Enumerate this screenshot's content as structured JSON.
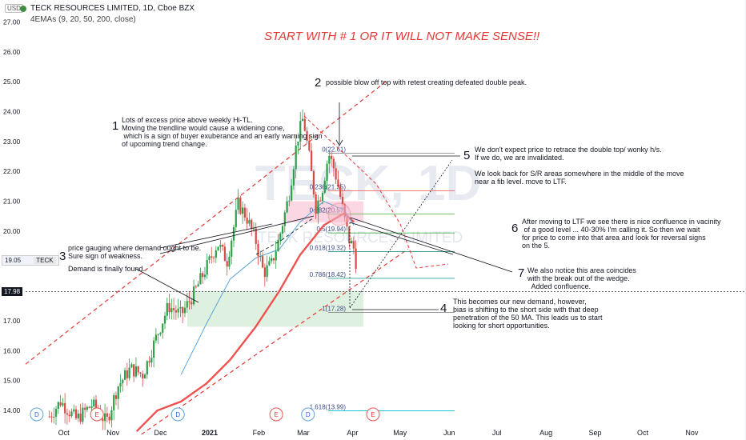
{
  "header": {
    "currency": "USD",
    "title": "TECK RESOURCES LIMITED, 1D, Cboe BZX",
    "indicator": "4EMAs (9, 20, 50, 200, close)",
    "symbol_tag": "TECK",
    "last_close": "19.05",
    "crosshair_price": "17.98"
  },
  "colors": {
    "up": "#26a69a",
    "down": "#ef5350",
    "candle_up": "#2e9e4a",
    "candle_down": "#d84a47",
    "ema50": "#ef5350",
    "ema20": "#5aa3d8",
    "dashed": "#e53935",
    "headline": "#e53935"
  },
  "watermark": {
    "big": "TECK, 1D",
    "small": "TECK RESOURCES LIMITED"
  },
  "chart_data": {
    "type": "candlestick",
    "title": "TECK RESOURCES LIMITED, 1D, Cboe BZX",
    "ylim": [
      13.6,
      27.2
    ],
    "y_ticks": [
      "27.00",
      "26.00",
      "25.00",
      "24.00",
      "23.00",
      "22.00",
      "21.00",
      "20.00",
      "19.00",
      "18.00",
      "17.00",
      "16.00",
      "15.00",
      "14.00"
    ],
    "x_ticks": [
      "Oct",
      "Nov",
      "Dec",
      "2021",
      "Feb",
      "Mar",
      "Apr",
      "May",
      "Jun",
      "Jul",
      "Aug",
      "Sep",
      "Oct",
      "Nov"
    ],
    "x_start": "2020-09-13",
    "x_end": "2021-11-25",
    "price_path": [
      [
        "2020-09-28",
        13.8
      ],
      [
        "2020-10-05",
        14.3
      ],
      [
        "2020-10-15",
        13.7
      ],
      [
        "2020-10-25",
        14.2
      ],
      [
        "2020-11-03",
        13.6
      ],
      [
        "2020-11-10",
        14.8
      ],
      [
        "2020-11-18",
        15.4
      ],
      [
        "2020-11-26",
        15.2
      ],
      [
        "2020-12-04",
        16.4
      ],
      [
        "2020-12-12",
        17.5
      ],
      [
        "2020-12-20",
        17.2
      ],
      [
        "2020-12-28",
        17.9
      ],
      [
        "2021-01-06",
        18.9
      ],
      [
        "2021-01-12",
        19.6
      ],
      [
        "2021-01-18",
        19.0
      ],
      [
        "2021-01-25",
        20.9
      ],
      [
        "2021-01-30",
        20.5
      ],
      [
        "2021-02-05",
        19.7
      ],
      [
        "2021-02-10",
        18.6
      ],
      [
        "2021-02-15",
        18.9
      ],
      [
        "2021-02-20",
        19.8
      ],
      [
        "2021-02-26",
        21.2
      ],
      [
        "2021-03-03",
        23.0
      ],
      [
        "2021-03-07",
        23.8
      ],
      [
        "2021-03-11",
        22.4
      ],
      [
        "2021-03-15",
        20.8
      ],
      [
        "2021-03-19",
        21.4
      ],
      [
        "2021-03-23",
        22.6
      ],
      [
        "2021-03-27",
        22.0
      ],
      [
        "2021-03-31",
        21.0
      ],
      [
        "2021-04-02",
        20.4
      ],
      [
        "2021-04-05",
        19.7
      ],
      [
        "2021-04-08",
        19.4
      ],
      [
        "2021-04-10",
        18.7
      ]
    ],
    "series": [
      {
        "points": [
          [
            "2020-11-22",
            13.3
          ],
          [
            "2020-12-05",
            14.0
          ],
          [
            "2020-12-20",
            14.3
          ],
          [
            "2021-01-05",
            14.9
          ],
          [
            "2021-01-20",
            15.7
          ],
          [
            "2021-02-05",
            16.8
          ],
          [
            "2021-02-20",
            18.0
          ],
          [
            "2021-03-05",
            19.2
          ],
          [
            "2021-03-20",
            20.2
          ],
          [
            "2021-04-02",
            20.6
          ],
          [
            "2021-04-08",
            20.3
          ]
        ]
      },
      {
        "points": [
          [
            "2020-12-20",
            15.2
          ],
          [
            "2021-01-05",
            16.9
          ],
          [
            "2021-01-20",
            18.4
          ],
          [
            "2021-02-05",
            19.1
          ],
          [
            "2021-02-20",
            19.4
          ],
          [
            "2021-03-05",
            20.3
          ],
          [
            "2021-03-20",
            21.0
          ],
          [
            "2021-04-02",
            20.7
          ],
          [
            "2021-04-08",
            20.2
          ]
        ]
      }
    ],
    "fib_levels": [
      {
        "label": "0(22.61)",
        "value": 22.61
      },
      {
        "label": "0.236(21.35)",
        "value": 21.35
      },
      {
        "label": "0.382(20.57)",
        "value": 20.57
      },
      {
        "label": "0.5(19.94)",
        "value": 19.94
      },
      {
        "label": "0.618(19.32)",
        "value": 19.32
      },
      {
        "label": "0.786(18.42)",
        "value": 18.42
      },
      {
        "label": "1(17.28)",
        "value": 17.28
      },
      {
        "label": "1.618(13.99)",
        "value": 13.99
      }
    ],
    "zones": [
      {
        "from": "2021-02-24",
        "to": "2021-04-14",
        "top": 21.0,
        "bottom": 20.3,
        "color": "#f8bbd0"
      },
      {
        "from": "2020-12-24",
        "to": "2021-04-14",
        "top": 18.0,
        "bottom": 16.8,
        "color": "#c8e6c9"
      }
    ],
    "events": [
      {
        "label": "D",
        "date": "2020-09-20"
      },
      {
        "label": "E",
        "date": "2020-10-28"
      },
      {
        "label": "D",
        "date": "2020-12-18"
      },
      {
        "label": "E",
        "date": "2021-02-18"
      },
      {
        "label": "D",
        "date": "2021-03-10"
      },
      {
        "label": "E",
        "date": "2021-04-20"
      }
    ],
    "channel_lines": [
      {
        "p1": [
          "2020-09-13",
          15.55
        ],
        "p2": [
          "2021-04-28",
          25.0
        ]
      },
      {
        "p1": [
          "2020-11-25",
          13.2
        ],
        "p2": [
          "2021-05-12",
          19.4
        ]
      }
    ]
  },
  "headline": "START WITH # 1 OR IT WILL NOT MAKE SENSE!!",
  "annotations": [
    {
      "num": "1",
      "text": "Lots of excess price above weekly Hi-TL.\nMoving the trendline would cause a widening cone,\n which is a sign of buyer exuberance and an early warning sign\nof upcoming trend change."
    },
    {
      "num": "2",
      "text": "possible blow off top with retest creating defeated double peak."
    },
    {
      "num": "3",
      "text": "price gauging where demand ought to be.\nSure sign of weakness."
    },
    {
      "num": "",
      "text": "Demand is finally found."
    },
    {
      "num": "4",
      "text": "This becomes our new demand, however,\nbias is shifting to the short side with that deep\npenetration of the 50 MA. This leads us to start\nlooking for short opportunities."
    },
    {
      "num": "5",
      "text": "We don't expect price to retrace the double top/ wonky h/s.\nIf we do, we are invalidated.\n\nWe look back for S/R areas somewhere in the middle of the move\nnear a fib level. move to LTF."
    },
    {
      "num": "6",
      "text": "After moving to LTF we see there is nice confluence in vacinity\n of a good level ... 40-30% I'm calling it. So then we wait\nfor price to come into that area and look for reversal signs\non the 5."
    },
    {
      "num": "7",
      "text": "We also notice this area coincides\nwith the break out of the wedge.\n  Added confluence."
    }
  ]
}
